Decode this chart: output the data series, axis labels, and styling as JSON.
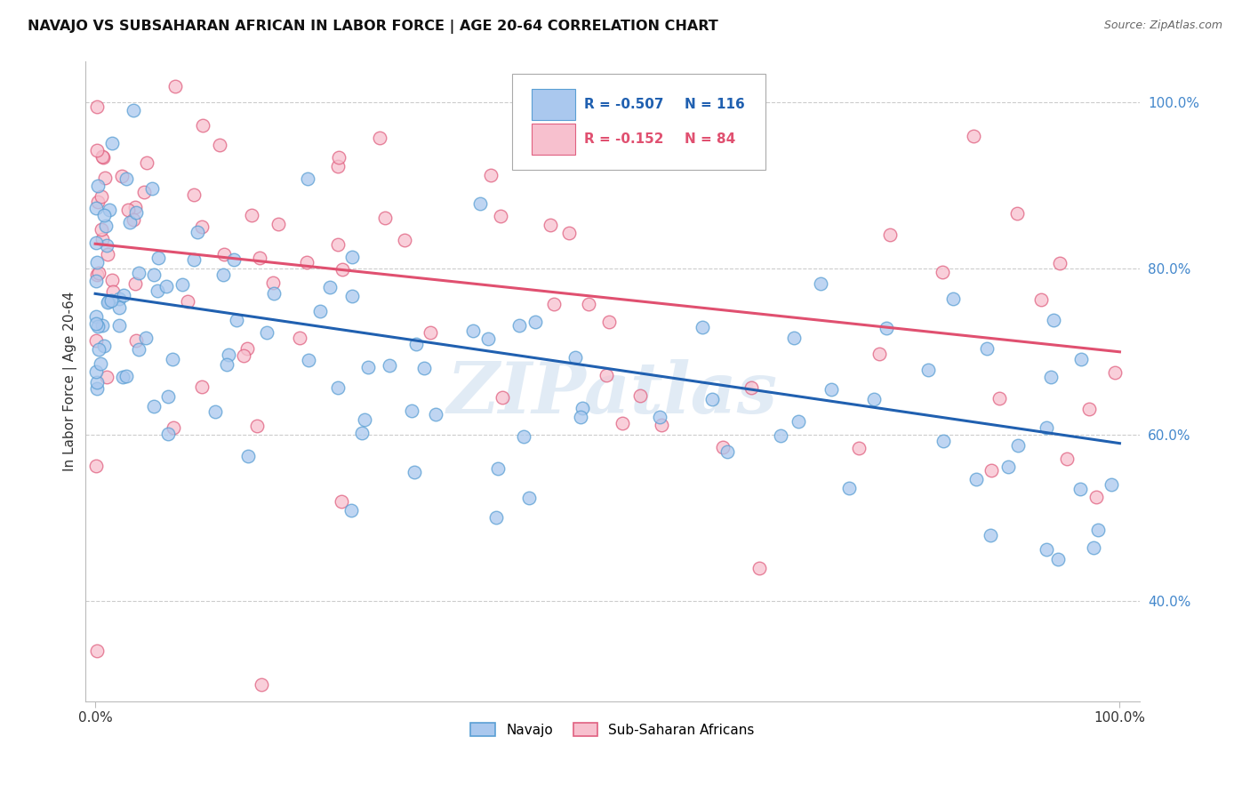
{
  "title": "NAVAJO VS SUBSAHARAN AFRICAN IN LABOR FORCE | AGE 20-64 CORRELATION CHART",
  "source": "Source: ZipAtlas.com",
  "ylabel": "In Labor Force | Age 20-64",
  "legend_label1": "Navajo",
  "legend_label2": "Sub-Saharan Africans",
  "r1": "-0.507",
  "n1": "116",
  "r2": "-0.152",
  "n2": "84",
  "color_navajo_fill": "#aac8ee",
  "color_navajo_edge": "#5a9fd4",
  "color_subsaharan_fill": "#f7c0ce",
  "color_subsaharan_edge": "#e06080",
  "color_navajo_line": "#2060b0",
  "color_subsaharan_line": "#e05070",
  "watermark": "ZIPatlas",
  "background_color": "#ffffff",
  "grid_color": "#cccccc",
  "ytick_color": "#4488cc",
  "ylim_min": 0.28,
  "ylim_max": 1.05,
  "xlim_min": -0.01,
  "xlim_max": 1.02,
  "nav_line_x0": 0.0,
  "nav_line_x1": 1.0,
  "nav_line_y0": 0.77,
  "nav_line_y1": 0.59,
  "sub_line_x0": 0.0,
  "sub_line_x1": 1.0,
  "sub_line_y0": 0.83,
  "sub_line_y1": 0.7
}
